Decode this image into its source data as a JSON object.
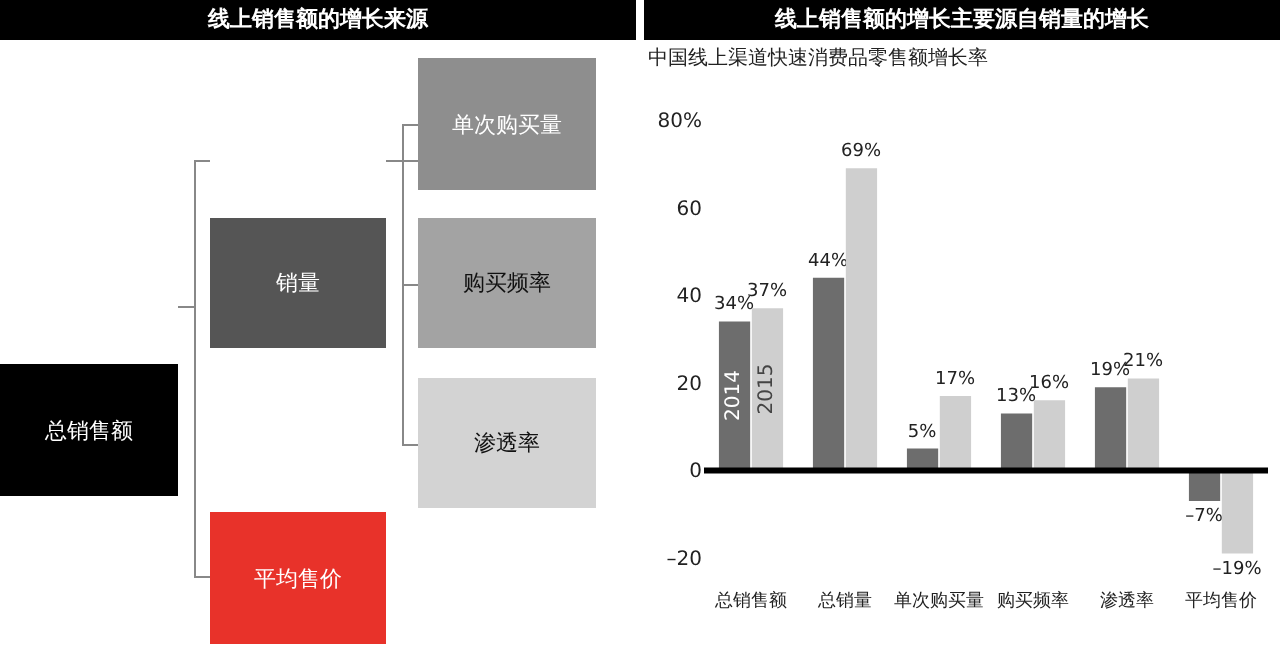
{
  "chart_data": [
    {
      "type": "other",
      "title": "线上销售额的增长来源",
      "annotations": [
        "总销售额",
        "销量",
        "平均售价",
        "单次购买量",
        "购买频率",
        "渗透率"
      ]
    },
    {
      "type": "bar",
      "title": "线上销售额的增长主要源自销量的增长",
      "subtitle": "中国线上渠道快速消费品零售额增长率",
      "categories": [
        "总销售额",
        "总销量",
        "单次购买量",
        "购买频率",
        "渗透率",
        "平均售价"
      ],
      "series": [
        {
          "name": "2014",
          "color": "#6d6d6d",
          "values": [
            34,
            44,
            5,
            13,
            19,
            -7
          ],
          "value_labels": [
            "34%",
            "44%",
            "5%",
            "13%",
            "19%",
            "–7%"
          ]
        },
        {
          "name": "2015",
          "color": "#cfcfcf",
          "values": [
            37,
            69,
            17,
            16,
            21,
            -19
          ],
          "value_labels": [
            "37%",
            "69%",
            "17%",
            "16%",
            "21%",
            "–19%"
          ]
        }
      ],
      "ylim": [
        -20,
        80
      ],
      "ref_lines": [
        {
          "axis": "y",
          "value": 0,
          "color": "#000000"
        }
      ],
      "yticks": [
        {
          "value": -20,
          "label": "–20"
        },
        0,
        20,
        40,
        60,
        {
          "value": 80,
          "label": "80%"
        }
      ],
      "grid": false,
      "legend": false
    }
  ]
}
